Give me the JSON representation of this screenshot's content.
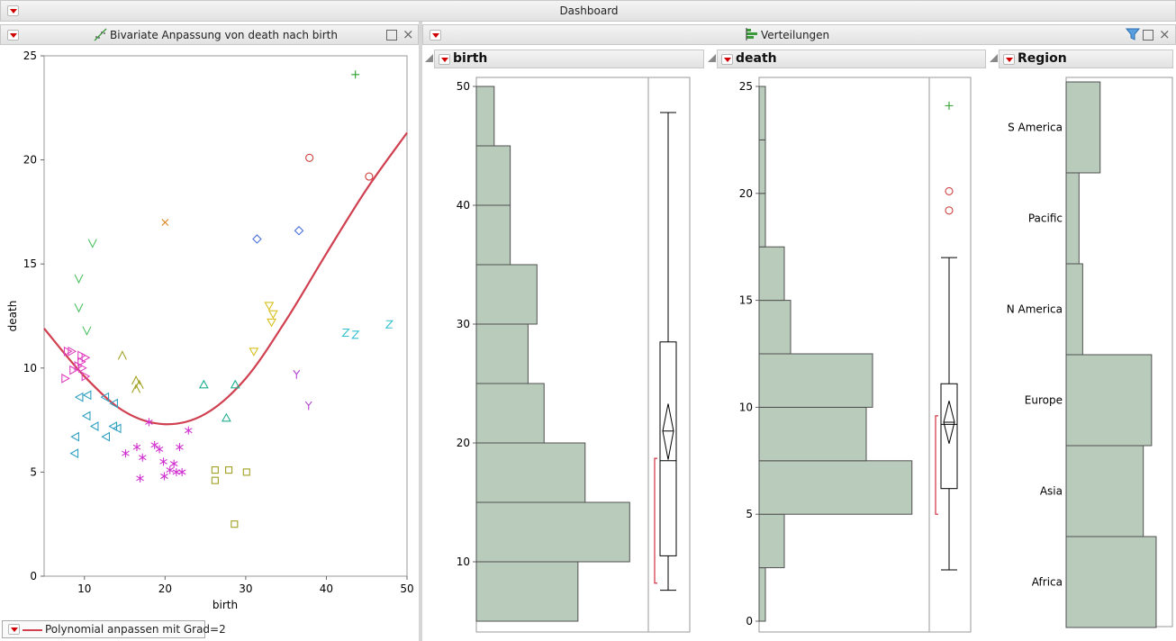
{
  "dashboard": {
    "title": "Dashboard"
  },
  "bivariate": {
    "title": "Bivariate Anpassung von death nach birth",
    "fit_label": "Polynomial anpassen mit Grad=2",
    "chart_data": {
      "type": "scatter",
      "xlabel": "birth",
      "ylabel": "death",
      "xlim": [
        5,
        50
      ],
      "ylim": [
        0,
        25
      ],
      "x_ticks": [
        10,
        20,
        30,
        40,
        50
      ],
      "y_ticks": [
        0,
        5,
        10,
        15,
        20,
        25
      ],
      "fit_curve": {
        "type": "polynomial",
        "degree": 2,
        "color": "#d04050",
        "points": [
          [
            5,
            11.9
          ],
          [
            10,
            9.6
          ],
          [
            15,
            7.9
          ],
          [
            20,
            7.3
          ],
          [
            25,
            7.8
          ],
          [
            30,
            9.5
          ],
          [
            35,
            12.3
          ],
          [
            40,
            15.5
          ],
          [
            45,
            18.6
          ],
          [
            50,
            21.3
          ]
        ]
      },
      "series": [
        {
          "marker": "plus",
          "color": "#2ca02c",
          "points": [
            [
              43.6,
              24.1
            ]
          ]
        },
        {
          "marker": "circle",
          "color": "#d04040",
          "points": [
            [
              37.9,
              20.1
            ],
            [
              45.3,
              19.2
            ]
          ]
        },
        {
          "marker": "x",
          "color": "#e0801a",
          "points": [
            [
              20,
              17
            ]
          ]
        },
        {
          "marker": "diamond",
          "color": "#4a72d8",
          "points": [
            [
              31.4,
              16.2
            ],
            [
              36.6,
              16.6
            ]
          ]
        },
        {
          "marker": "V",
          "color": "#4cc060",
          "points": [
            [
              11,
              16
            ],
            [
              9.3,
              14.3
            ],
            [
              9.3,
              12.9
            ],
            [
              10.3,
              11.8
            ]
          ]
        },
        {
          "marker": "tri-down",
          "color": "#d8c020",
          "points": [
            [
              32.9,
              13
            ],
            [
              33.4,
              12.6
            ],
            [
              33.2,
              12.2
            ],
            [
              31,
              10.8
            ]
          ]
        },
        {
          "marker": "Z",
          "color": "#30c0d0",
          "points": [
            [
              42.4,
              11.7
            ],
            [
              43.6,
              11.6
            ],
            [
              47.8,
              12.1
            ]
          ]
        },
        {
          "marker": "Y",
          "color": "#b040d0",
          "points": [
            [
              36.3,
              9.7
            ],
            [
              37.8,
              8.2
            ]
          ]
        },
        {
          "marker": "wedge",
          "color": "#a0a020",
          "points": [
            [
              14.7,
              10.6
            ],
            [
              16.4,
              9.4
            ],
            [
              16.8,
              9.2
            ],
            [
              16.4,
              9
            ]
          ]
        },
        {
          "marker": "tri-up",
          "color": "#20b090",
          "points": [
            [
              24.8,
              9.2
            ],
            [
              28.7,
              9.2
            ],
            [
              27.6,
              7.6
            ]
          ]
        },
        {
          "marker": "tri-right",
          "color": "#e040c0",
          "points": [
            [
              7.9,
              10.8
            ],
            [
              8.4,
              10.8
            ],
            [
              9.6,
              10.6
            ],
            [
              10.1,
              10.5
            ],
            [
              9.6,
              10.3
            ],
            [
              9.2,
              10.1
            ],
            [
              9.7,
              10
            ],
            [
              8.6,
              9.9
            ],
            [
              10.1,
              9.6
            ],
            [
              7.6,
              9.5
            ]
          ]
        },
        {
          "marker": "tri-left",
          "color": "#30a0c0",
          "points": [
            [
              10.4,
              8.7
            ],
            [
              10.3,
              7.7
            ],
            [
              9.4,
              8.6
            ],
            [
              12.6,
              8.6
            ],
            [
              13.7,
              8.3
            ],
            [
              11.3,
              7.2
            ],
            [
              13.6,
              7.2
            ],
            [
              14.1,
              7.1
            ],
            [
              12.7,
              6.7
            ],
            [
              8.9,
              6.7
            ],
            [
              8.8,
              5.9
            ]
          ]
        },
        {
          "marker": "star",
          "color": "#d030d0",
          "points": [
            [
              18,
              7.4
            ],
            [
              22.9,
              7
            ],
            [
              16.5,
              6.2
            ],
            [
              18.7,
              6.3
            ],
            [
              19.3,
              6.1
            ],
            [
              21.8,
              6.2
            ],
            [
              15.1,
              5.9
            ],
            [
              17.2,
              5.7
            ],
            [
              19.8,
              5.5
            ],
            [
              21.1,
              5.4
            ],
            [
              20.6,
              5.1
            ],
            [
              21.4,
              5
            ],
            [
              22.1,
              5
            ],
            [
              19.9,
              4.8
            ],
            [
              16.9,
              4.7
            ]
          ]
        },
        {
          "marker": "square",
          "color": "#a0a020",
          "points": [
            [
              26.2,
              5.1
            ],
            [
              27.9,
              5.1
            ],
            [
              30.1,
              5
            ],
            [
              26.2,
              4.6
            ],
            [
              28.6,
              2.5
            ]
          ]
        }
      ]
    }
  },
  "verteilungen": {
    "title": "Verteilungen",
    "birth": {
      "title": "birth",
      "chart_data": {
        "type": "bar",
        "orientation": "horizontal-histogram",
        "y_range": [
          5,
          50
        ],
        "y_ticks": [
          10,
          20,
          30,
          40,
          50
        ],
        "bins": [
          {
            "from": 5,
            "to": 10,
            "count": 5.7
          },
          {
            "from": 10,
            "to": 15,
            "count": 8.6
          },
          {
            "from": 15,
            "to": 20,
            "count": 6.1
          },
          {
            "from": 20,
            "to": 25,
            "count": 3.8
          },
          {
            "from": 25,
            "to": 30,
            "count": 2.9
          },
          {
            "from": 30,
            "to": 35,
            "count": 3.4
          },
          {
            "from": 35,
            "to": 40,
            "count": 1.9
          },
          {
            "from": 40,
            "to": 45,
            "count": 1.9
          },
          {
            "from": 45,
            "to": 50,
            "count": 1
          }
        ],
        "boxplot": {
          "min": 7.6,
          "q1": 10.5,
          "median": 18.5,
          "q3": 28.5,
          "max": 47.8,
          "mean": 21,
          "mean_ci": [
            18.6,
            23.3
          ],
          "shortest_half": [
            8.2,
            18.7
          ]
        }
      }
    },
    "death": {
      "title": "death",
      "chart_data": {
        "type": "bar",
        "orientation": "horizontal-histogram",
        "y_range": [
          0,
          25
        ],
        "y_ticks": [
          0,
          5,
          10,
          15,
          20,
          25
        ],
        "bins": [
          {
            "from": 0,
            "to": 2.5,
            "count": 0.4
          },
          {
            "from": 2.5,
            "to": 5,
            "count": 1.6
          },
          {
            "from": 5,
            "to": 7.5,
            "count": 9.7
          },
          {
            "from": 7.5,
            "to": 10,
            "count": 6.8
          },
          {
            "from": 10,
            "to": 12.5,
            "count": 7.2
          },
          {
            "from": 12.5,
            "to": 15,
            "count": 2
          },
          {
            "from": 15,
            "to": 17.5,
            "count": 1.6
          },
          {
            "from": 17.5,
            "to": 20,
            "count": 0.4
          },
          {
            "from": 20,
            "to": 22.5,
            "count": 0.4
          },
          {
            "from": 22.5,
            "to": 25,
            "count": 0.4
          }
        ],
        "boxplot": {
          "min": 2.4,
          "q1": 6.2,
          "median": 9.2,
          "q3": 11.1,
          "max": 17,
          "mean": 9.3,
          "mean_ci": [
            8.3,
            10.3
          ],
          "shortest_half": [
            5,
            9.6
          ]
        },
        "outliers": [
          {
            "value": 24.1,
            "marker": "plus",
            "color": "#2ca02c"
          },
          {
            "value": 20.1,
            "marker": "circle",
            "color": "#d04040"
          },
          {
            "value": 19.2,
            "marker": "circle",
            "color": "#d04040"
          }
        ]
      }
    },
    "region": {
      "title": "Region",
      "chart_data": {
        "type": "bar",
        "orientation": "horizontal",
        "categories": [
          "S America",
          "Pacific",
          "N America",
          "Europe",
          "Asia",
          "Africa"
        ],
        "values": [
          3.7,
          1.4,
          1.8,
          9.3,
          8.4,
          9.8
        ]
      }
    }
  }
}
